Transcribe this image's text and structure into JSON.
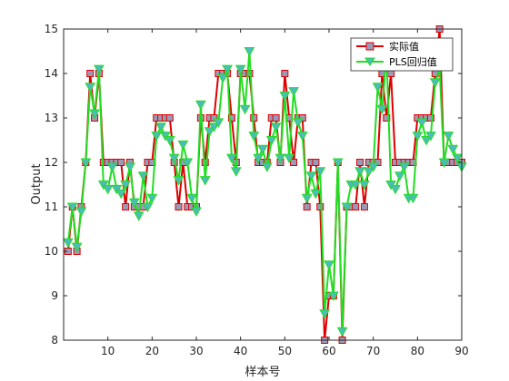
{
  "chart_data": {
    "type": "line",
    "title": "",
    "xlabel": "样本号",
    "ylabel": "Output",
    "xlim": [
      0,
      90
    ],
    "ylim": [
      8,
      15
    ],
    "xticks": [
      10,
      20,
      30,
      40,
      50,
      60,
      70,
      80,
      90
    ],
    "yticks": [
      8,
      9,
      10,
      11,
      12,
      13,
      14,
      15
    ],
    "grid": false,
    "legend_position": "top-right",
    "x": [
      1,
      2,
      3,
      4,
      5,
      6,
      7,
      8,
      9,
      10,
      11,
      12,
      13,
      14,
      15,
      16,
      17,
      18,
      19,
      20,
      21,
      22,
      23,
      24,
      25,
      26,
      27,
      28,
      29,
      30,
      31,
      32,
      33,
      34,
      35,
      36,
      37,
      38,
      39,
      40,
      41,
      42,
      43,
      44,
      45,
      46,
      47,
      48,
      49,
      50,
      51,
      52,
      53,
      54,
      55,
      56,
      57,
      58,
      59,
      60,
      61,
      62,
      63,
      64,
      65,
      66,
      67,
      68,
      69,
      70,
      71,
      72,
      73,
      74,
      75,
      76,
      77,
      78,
      79,
      80,
      81,
      82,
      83,
      84,
      85,
      86,
      87,
      88,
      89,
      90
    ],
    "series": [
      {
        "name": "实际值",
        "line_color": "#dd0000",
        "marker": "square",
        "marker_fill": "#9a9ab8",
        "values": [
          10,
          11,
          10,
          11,
          12,
          14,
          13,
          14,
          12,
          12,
          12,
          12,
          12,
          11,
          12,
          11,
          11,
          11,
          12,
          12,
          13,
          13,
          13,
          13,
          12,
          11,
          12,
          11,
          11,
          11,
          13,
          12,
          13,
          13,
          14,
          14,
          14,
          13,
          12,
          14,
          14,
          14,
          13,
          12,
          12,
          12,
          13,
          13,
          12,
          14,
          13,
          12,
          13,
          13,
          11,
          12,
          12,
          11,
          8,
          9,
          9,
          12,
          8,
          11,
          11,
          11,
          12,
          11,
          12,
          12,
          12,
          14,
          13,
          14,
          12,
          12,
          12,
          12,
          12,
          13,
          13,
          13,
          13,
          14,
          15,
          12,
          12,
          12,
          12,
          12
        ]
      },
      {
        "name": "PLS回归值",
        "line_color": "#22dd22",
        "marker": "triangle-down",
        "marker_fill": "#4cbcbc",
        "values": [
          10.2,
          11,
          10.1,
          10.9,
          12,
          13.7,
          13.1,
          14.1,
          11.5,
          11.4,
          11.9,
          11.4,
          11.3,
          11.5,
          11.9,
          11.1,
          10.8,
          11.7,
          11,
          11.2,
          12.6,
          12.8,
          12.6,
          12.5,
          12.1,
          11.6,
          12.4,
          12,
          11.2,
          10.9,
          13.3,
          11.6,
          12.7,
          12.8,
          12.9,
          13.9,
          14.1,
          12.1,
          11.8,
          14.1,
          13.2,
          14.5,
          12.6,
          12.1,
          12.3,
          11.9,
          12.5,
          12.8,
          12.1,
          13.5,
          12.1,
          13.6,
          12.9,
          12.6,
          11.2,
          11.7,
          11.3,
          11.8,
          8.6,
          9.7,
          9,
          12,
          8.2,
          11,
          11.5,
          11.5,
          11.8,
          11.5,
          11.8,
          11.9,
          13.7,
          13.2,
          14.4,
          11.5,
          11.4,
          11.7,
          11.9,
          11.2,
          11.2,
          12.6,
          12.9,
          12.5,
          12.6,
          13.8,
          14.1,
          12,
          12.6,
          12.3,
          12.1,
          11.9
        ]
      }
    ]
  }
}
